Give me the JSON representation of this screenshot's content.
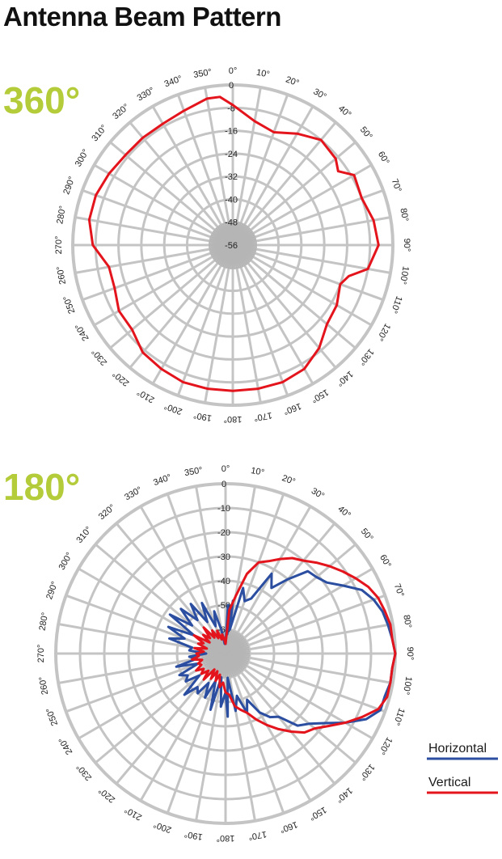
{
  "title": "Antenna Beam Pattern",
  "colors": {
    "grid": "#c4c4c4",
    "hub": "#b5b5b5",
    "pattern_360": "#e4141c",
    "horizontal": "#2b4ea0",
    "vertical": "#e4141c",
    "big_label": "#b4cc3a"
  },
  "chart_data": [
    {
      "type": "polar-line",
      "label": "360°",
      "angle_unit": "degrees",
      "angle_ticks": [
        "0°",
        "10°",
        "20°",
        "30°",
        "40°",
        "50°",
        "60°",
        "70°",
        "80°",
        "90°",
        "100°",
        "110°",
        "120°",
        "130°",
        "140°",
        "150°",
        "160°",
        "170°",
        "180°",
        "190°",
        "200°",
        "210°",
        "220°",
        "230°",
        "240°",
        "250°",
        "260°",
        "270°",
        "280°",
        "290°",
        "300°",
        "310°",
        "320°",
        "330°",
        "340°",
        "350°"
      ],
      "radial_ticks": [
        "0",
        "-8",
        "-16",
        "-24",
        "-32",
        "-40",
        "-48",
        "-56"
      ],
      "rlim": [
        -56,
        0
      ],
      "series": [
        {
          "angles": [
            0,
            10,
            20,
            30,
            40,
            50,
            55,
            60,
            70,
            80,
            90,
            100,
            105,
            110,
            120,
            130,
            140,
            150,
            160,
            170,
            180,
            190,
            200,
            210,
            220,
            230,
            240,
            250,
            260,
            270,
            280,
            290,
            300,
            310,
            320,
            330,
            340,
            350,
            355
          ],
          "values": [
            -7,
            -12,
            -14,
            -11,
            -8,
            -9,
            -11,
            -7,
            -8,
            -6,
            -5,
            -8,
            -14,
            -16,
            -14,
            -13,
            -9,
            -6,
            -5,
            -5,
            -5,
            -5,
            -5,
            -6,
            -7,
            -10,
            -10,
            -12,
            -12,
            -7,
            -5,
            -5,
            -6,
            -7,
            -7,
            -7,
            -6,
            -4,
            -4
          ]
        }
      ]
    },
    {
      "type": "polar-line",
      "label": "180°",
      "angle_unit": "degrees",
      "angle_ticks": [
        "0°",
        "10°",
        "20°",
        "30°",
        "40°",
        "50°",
        "60°",
        "70°",
        "80°",
        "90°",
        "100°",
        "110°",
        "120°",
        "130°",
        "140°",
        "150°",
        "160°",
        "170°",
        "180°",
        "190°",
        "200°",
        "210°",
        "220°",
        "230°",
        "240°",
        "250°",
        "260°",
        "270°",
        "280°",
        "290°",
        "300°",
        "310°",
        "320°",
        "330°",
        "340°",
        "350°"
      ],
      "radial_ticks": [
        "0",
        "-10",
        "-20",
        "-30",
        "-40",
        "-50",
        "-60"
      ],
      "rlim": [
        -70,
        0
      ],
      "legend_position": "bottom-right",
      "series": [
        {
          "name": "Horizontal",
          "angles": [
            0,
            3,
            5,
            8,
            10,
            15,
            20,
            25,
            30,
            35,
            40,
            45,
            50,
            55,
            60,
            65,
            70,
            75,
            80,
            85,
            90,
            95,
            100,
            105,
            110,
            115,
            120,
            125,
            130,
            135,
            140,
            145,
            150,
            155,
            160,
            165,
            170,
            175,
            178,
            180,
            185,
            190,
            195,
            200,
            205,
            210,
            215,
            220,
            225,
            230,
            235,
            240,
            245,
            250,
            255,
            260,
            265,
            270,
            275,
            280,
            285,
            290,
            295,
            300,
            305,
            310,
            315,
            320,
            325,
            330,
            335,
            340,
            345,
            350,
            355,
            360
          ],
          "values": [
            -66,
            -50,
            -62,
            -48,
            -60,
            -42,
            -47,
            -45,
            -32,
            -37,
            -30,
            -22,
            -21,
            -19,
            -14,
            -8,
            -5,
            -3,
            -2,
            -1,
            0,
            -1,
            -1,
            -2,
            -2,
            -6,
            -13,
            -20,
            -25,
            -28,
            -36,
            -38,
            -42,
            -49,
            -44,
            -52,
            -46,
            -60,
            -44,
            -54,
            -48,
            -60,
            -46,
            -58,
            -50,
            -56,
            -50,
            -52,
            -46,
            -56,
            -50,
            -52,
            -49,
            -58,
            -49,
            -58,
            -55,
            -62,
            -55,
            -56,
            -46,
            -52,
            -44,
            -55,
            -42,
            -52,
            -44,
            -52,
            -45,
            -55,
            -47,
            -58,
            -52,
            -60,
            -66,
            -66
          ]
        },
        {
          "name": "Vertical",
          "angles": [
            0,
            5,
            10,
            15,
            20,
            25,
            30,
            35,
            40,
            45,
            50,
            55,
            60,
            65,
            70,
            75,
            80,
            85,
            90,
            95,
            100,
            105,
            110,
            115,
            120,
            125,
            130,
            135,
            140,
            145,
            150,
            155,
            160,
            165,
            170,
            175,
            180,
            185,
            190,
            195,
            200,
            205,
            210,
            215,
            220,
            225,
            230,
            235,
            240,
            245,
            250,
            255,
            260,
            265,
            270,
            275,
            280,
            285,
            290,
            295,
            300,
            305,
            310,
            315,
            320,
            325,
            330,
            335,
            340,
            345,
            350,
            355,
            360
          ],
          "values": [
            -66,
            -52,
            -46,
            -36,
            -30,
            -28,
            -25,
            -22,
            -20,
            -17,
            -14,
            -11,
            -8,
            -5,
            -3,
            -2,
            -1,
            -1,
            0,
            -1,
            -1,
            -1,
            -3,
            -8,
            -13,
            -18,
            -22,
            -24,
            -28,
            -32,
            -36,
            -40,
            -44,
            -46,
            -48,
            -53,
            -54,
            -58,
            -56,
            -61,
            -58,
            -62,
            -58,
            -62,
            -56,
            -60,
            -57,
            -59,
            -56,
            -59,
            -58,
            -60,
            -56,
            -59,
            -58,
            -61,
            -57,
            -62,
            -58,
            -60,
            -55,
            -62,
            -58,
            -61,
            -56,
            -62,
            -59,
            -63,
            -60,
            -64,
            -62,
            -64,
            -66
          ]
        }
      ]
    }
  ]
}
